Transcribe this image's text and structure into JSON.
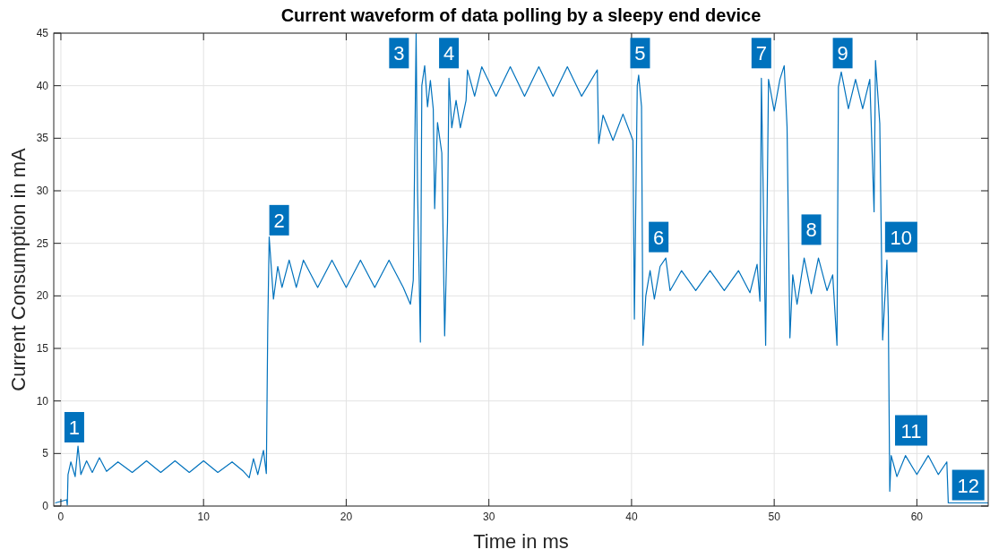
{
  "chart_data": {
    "type": "line",
    "title": "Current waveform of data polling by a sleepy end device",
    "xlabel": "Time in ms",
    "ylabel": "Current Consumption in mA",
    "xlim": [
      -0.5,
      65
    ],
    "ylim": [
      0,
      45
    ],
    "xticks": [
      0,
      10,
      20,
      30,
      40,
      50,
      60
    ],
    "yticks": [
      0,
      5,
      10,
      15,
      20,
      25,
      30,
      35,
      40,
      45
    ],
    "grid": true,
    "series": [
      {
        "color": "#0072bd",
        "x": [
          -0.4,
          0.4,
          0.45,
          0.5,
          0.7,
          1.0,
          1.2,
          1.4,
          1.8,
          2.2,
          2.7,
          3.2,
          4,
          5,
          6,
          7,
          8,
          9,
          10,
          11,
          12,
          12.8,
          13.2,
          13.5,
          13.8,
          14.2,
          14.4,
          14.5,
          14.6,
          14.9,
          15.2,
          15.5,
          16,
          16.5,
          17,
          18,
          19,
          20,
          21,
          22,
          23,
          24,
          24.5,
          24.7,
          24.9,
          25.0,
          25.2,
          25.3,
          25.5,
          25.7,
          25.9,
          26.1,
          26.2,
          26.4,
          26.7,
          26.9,
          27.1,
          27.2,
          27.4,
          27.7,
          28,
          28.4,
          28.5,
          29,
          29.5,
          30.5,
          31.5,
          32.5,
          33.5,
          34.5,
          35.5,
          36.5,
          37.6,
          37.7,
          38,
          38.7,
          39.4,
          40.1,
          40.2,
          40.4,
          40.5,
          40.7,
          40.8,
          41,
          41.3,
          41.6,
          42,
          42.4,
          42.7,
          43.5,
          44.5,
          45.5,
          46.5,
          47.5,
          48.3,
          48.8,
          49.0,
          49.1,
          49.25,
          49.4,
          49.6,
          50,
          50.4,
          50.7,
          50.9,
          51.1,
          51.3,
          51.6,
          52.1,
          52.6,
          53.1,
          53.7,
          54.1,
          54.4,
          54.5,
          54.7,
          55.2,
          55.7,
          56.2,
          56.7,
          57.0,
          57.1,
          57.4,
          57.6,
          57.9,
          58.0,
          58.1,
          58.2,
          58.6,
          59.2,
          60,
          60.8,
          61.5,
          62.1,
          62.2,
          65
        ],
        "values": [
          0.3,
          0.6,
          0.1,
          3.0,
          4.2,
          2.8,
          5.7,
          3.0,
          4.3,
          3.2,
          4.6,
          3.3,
          4.2,
          3.2,
          4.3,
          3.2,
          4.3,
          3.2,
          4.3,
          3.2,
          4.2,
          3.3,
          2.7,
          4.5,
          3.0,
          5.3,
          3.1,
          17,
          25.6,
          19.7,
          22.8,
          20.8,
          23.4,
          20.8,
          23.4,
          20.8,
          23.4,
          20.8,
          23.4,
          20.8,
          23.4,
          20.8,
          19.2,
          21.5,
          45,
          30,
          15.6,
          40,
          41.9,
          38,
          40.5,
          37.8,
          28.3,
          36.5,
          33.6,
          16.2,
          27,
          40.7,
          36,
          38.6,
          36,
          38.6,
          41.5,
          39,
          41.8,
          39,
          41.8,
          39,
          41.8,
          39,
          41.8,
          39,
          41.5,
          34.5,
          37.2,
          34.8,
          37.3,
          34.8,
          17.8,
          40,
          41,
          38,
          15.3,
          20,
          22.4,
          19.7,
          22.8,
          23.6,
          20.5,
          22.4,
          20.5,
          22.4,
          20.5,
          22.4,
          20.3,
          23,
          19.5,
          40.7,
          28,
          15.3,
          40.6,
          37.6,
          40.6,
          41.9,
          36.1,
          16,
          22,
          19.2,
          23.6,
          20.2,
          23.6,
          20.5,
          22,
          15.3,
          39.9,
          41.3,
          37.8,
          40.6,
          37.8,
          40.6,
          28,
          42.4,
          36.4,
          15.8,
          23.4,
          18,
          1.4,
          4.8,
          2.8,
          4.8,
          3,
          4.8,
          3,
          4.2,
          0.3,
          0.3
        ]
      }
    ],
    "annotations": [
      {
        "text": "1",
        "x": 0.94,
        "y": 7.5
      },
      {
        "text": "2",
        "x": 15.3,
        "y": 27.2
      },
      {
        "text": "3",
        "x": 23.7,
        "y": 43.1
      },
      {
        "text": "4",
        "x": 27.2,
        "y": 43.1
      },
      {
        "text": "5",
        "x": 40.6,
        "y": 43.1
      },
      {
        "text": "6",
        "x": 41.9,
        "y": 25.6
      },
      {
        "text": "7",
        "x": 49.1,
        "y": 43.1
      },
      {
        "text": "8",
        "x": 52.6,
        "y": 26.3
      },
      {
        "text": "9",
        "x": 54.8,
        "y": 43.1
      },
      {
        "text": "10",
        "x": 58.9,
        "y": 25.6
      },
      {
        "text": "11",
        "x": 59.6,
        "y": 7.2
      },
      {
        "text": "12",
        "x": 63.6,
        "y": 2.0
      }
    ]
  }
}
